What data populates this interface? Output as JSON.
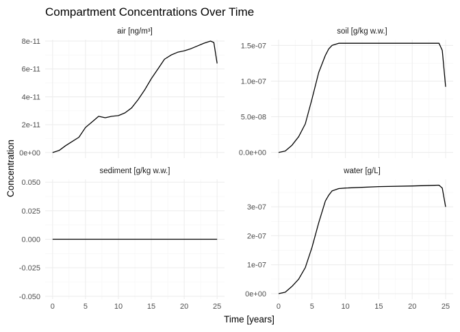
{
  "chart_data": {
    "type": "line",
    "title": "Compartment Concentrations Over Time",
    "xlabel": "Time [years]",
    "ylabel": "Concentration",
    "xlim": [
      0,
      25
    ],
    "x_ticks": [
      0,
      5,
      10,
      15,
      20,
      25
    ],
    "x_tick_labels": [
      "0",
      "5",
      "10",
      "15",
      "20",
      "25"
    ],
    "facets": [
      {
        "key": "air",
        "label": "air [ng/m³]",
        "ylim": [
          -4e-12,
          8.1e-11
        ],
        "y_ticks": [
          0,
          2e-11,
          4e-11,
          6e-11,
          8e-11
        ],
        "y_tick_labels": [
          "0e+00",
          "2e-11",
          "4e-11",
          "6e-11",
          "8e-11"
        ],
        "x": [
          0,
          1,
          2,
          3,
          4,
          5,
          6,
          7,
          8,
          9,
          10,
          11,
          12,
          13,
          14,
          15,
          16,
          17,
          18,
          19,
          20,
          21,
          22,
          23,
          24,
          24.5,
          25
        ],
        "y": [
          0,
          1.5e-12,
          5e-12,
          8e-12,
          1.1e-11,
          1.8e-11,
          2.2e-11,
          2.6e-11,
          2.5e-11,
          2.6e-11,
          2.65e-11,
          2.85e-11,
          3.2e-11,
          3.8e-11,
          4.5e-11,
          5.3e-11,
          6e-11,
          6.7e-11,
          7e-11,
          7.2e-11,
          7.3e-11,
          7.45e-11,
          7.65e-11,
          7.85e-11,
          8e-11,
          7.9e-11,
          6.4e-11
        ]
      },
      {
        "key": "soil",
        "label": "soil [g/kg w.w.]",
        "ylim": [
          -8e-09,
          1.58e-07
        ],
        "y_ticks": [
          0,
          5e-08,
          1e-07,
          1.5e-07
        ],
        "y_tick_labels": [
          "0.0e+00",
          "5.0e-08",
          "1.0e-07",
          "1.5e-07"
        ],
        "x": [
          0,
          1,
          2,
          3,
          4,
          5,
          6,
          7,
          7.5,
          8,
          9,
          10,
          15,
          20,
          24,
          24.5,
          25
        ],
        "y": [
          0,
          2e-09,
          1e-08,
          2.2e-08,
          4e-08,
          7.5e-08,
          1.12e-07,
          1.36e-07,
          1.45e-07,
          1.5e-07,
          1.53e-07,
          1.53e-07,
          1.53e-07,
          1.53e-07,
          1.53e-07,
          1.43e-07,
          9.2e-08
        ]
      },
      {
        "key": "sediment",
        "label": "sediment [g/kg w.w.]",
        "ylim": [
          -0.0525,
          0.0525
        ],
        "y_ticks": [
          -0.05,
          -0.025,
          0,
          0.025,
          0.05
        ],
        "y_tick_labels": [
          "-0.050",
          "-0.025",
          "0.000",
          "0.025",
          "0.050"
        ],
        "x": [
          0,
          25
        ],
        "y": [
          0,
          0
        ]
      },
      {
        "key": "water",
        "label": "water [g/L]",
        "ylim": [
          -1.9e-08,
          3.95e-07
        ],
        "y_ticks": [
          0,
          1e-07,
          2e-07,
          3e-07
        ],
        "y_tick_labels": [
          "0e+00",
          "1e-07",
          "2e-07",
          "3e-07"
        ],
        "x": [
          0,
          1,
          2,
          3,
          4,
          5,
          6,
          7,
          7.5,
          8,
          9,
          10,
          15,
          20,
          24,
          24.5,
          25
        ],
        "y": [
          0,
          5e-09,
          2.5e-08,
          5e-08,
          9e-08,
          1.6e-07,
          2.45e-07,
          3.2e-07,
          3.4e-07,
          3.55e-07,
          3.63e-07,
          3.65e-07,
          3.7e-07,
          3.72e-07,
          3.75e-07,
          3.65e-07,
          3e-07
        ]
      }
    ]
  }
}
